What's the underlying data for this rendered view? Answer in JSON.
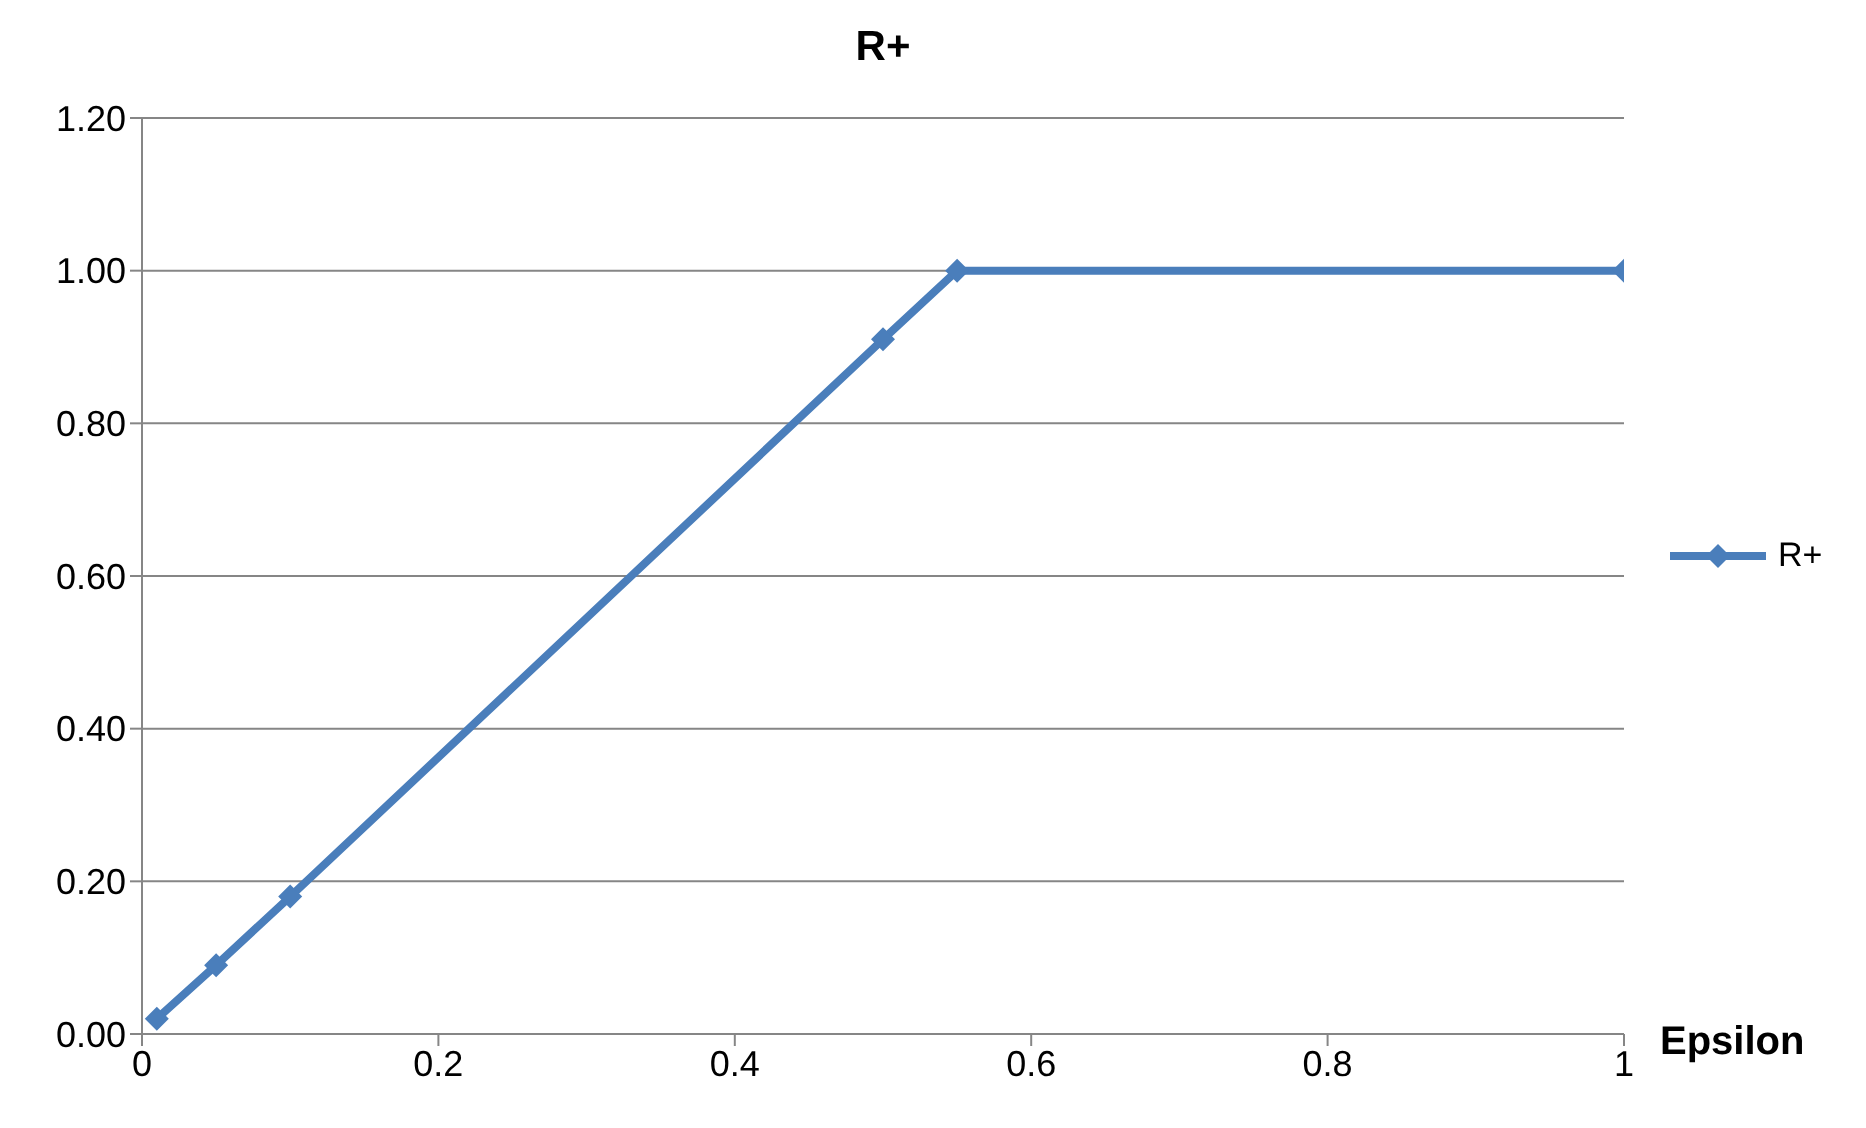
{
  "chart_data": {
    "type": "line",
    "title": "R+",
    "xlabel": "Epsilon",
    "xlim": [
      0,
      1
    ],
    "xticks": [
      0,
      0.2,
      0.4,
      0.6,
      0.8,
      1
    ],
    "ylim": [
      0,
      1.2
    ],
    "yticks": [
      {
        "value": 0,
        "label": "0.00"
      },
      {
        "value": 0.2,
        "label": "0.20"
      },
      {
        "value": 0.4,
        "label": "0.40"
      },
      {
        "value": 0.6,
        "label": "0.60"
      },
      {
        "value": 0.8,
        "label": "0.80"
      },
      {
        "value": 1,
        "label": "1.00"
      },
      {
        "value": 1.2,
        "label": "1.20"
      }
    ],
    "x": [
      0.01,
      0.05,
      0.1,
      0.5,
      0.55,
      1
    ],
    "series": [
      {
        "name": "R+",
        "color": "#4a7ebb",
        "values": [
          0.02,
          0.09,
          0.18,
          0.91,
          1.0,
          1.0
        ]
      }
    ],
    "grid": "y",
    "legend": "right",
    "marker": "diamond",
    "line_style": "solid"
  }
}
